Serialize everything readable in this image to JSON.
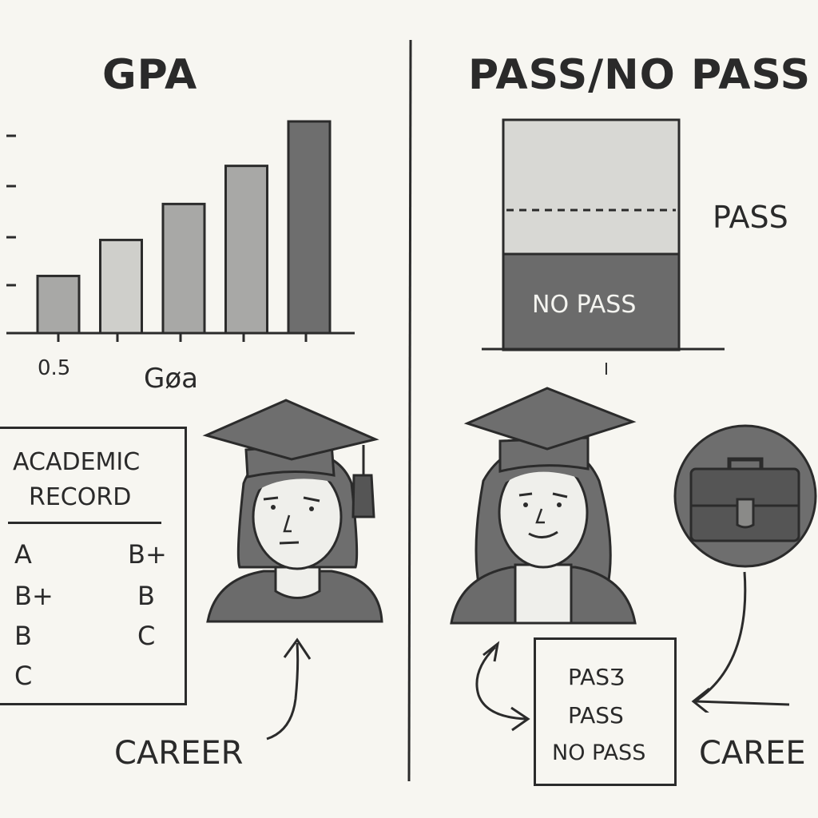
{
  "left": {
    "title": "GPA",
    "chart": {
      "bar_levels": [
        0.27,
        0.44,
        0.61,
        0.79,
        1.0
      ],
      "tick_label": "0.5",
      "axis_label": "Gøa"
    },
    "record": {
      "title_line1": "ACADEMIC",
      "title_line2": "RECORD",
      "grades_col1": [
        "A",
        "B+",
        "B",
        "C"
      ],
      "grades_col2": [
        "B+",
        "B",
        "C"
      ]
    },
    "career_label": "CAREER"
  },
  "right": {
    "title": "PASS/NO PASS",
    "chart": {
      "pass_label": "PASS",
      "no_pass_label": "NO PASS",
      "tick_label": "I"
    },
    "card_lines": [
      "PASƷ",
      "PASS",
      "NO PASS"
    ],
    "career_label": "CAREE"
  },
  "colors": {
    "background": "#f7f6f1",
    "ink": "#2b2b2b",
    "bar_light": "#cfcfcb",
    "bar_mid": "#a8a8a6",
    "bar_dark": "#6e6e6e",
    "no_pass_fill": "#6b6b6b",
    "pass_fill": "#d8d8d4"
  },
  "icons": [
    "graduation-cap-icon",
    "briefcase-icon",
    "arrow-icon"
  ]
}
